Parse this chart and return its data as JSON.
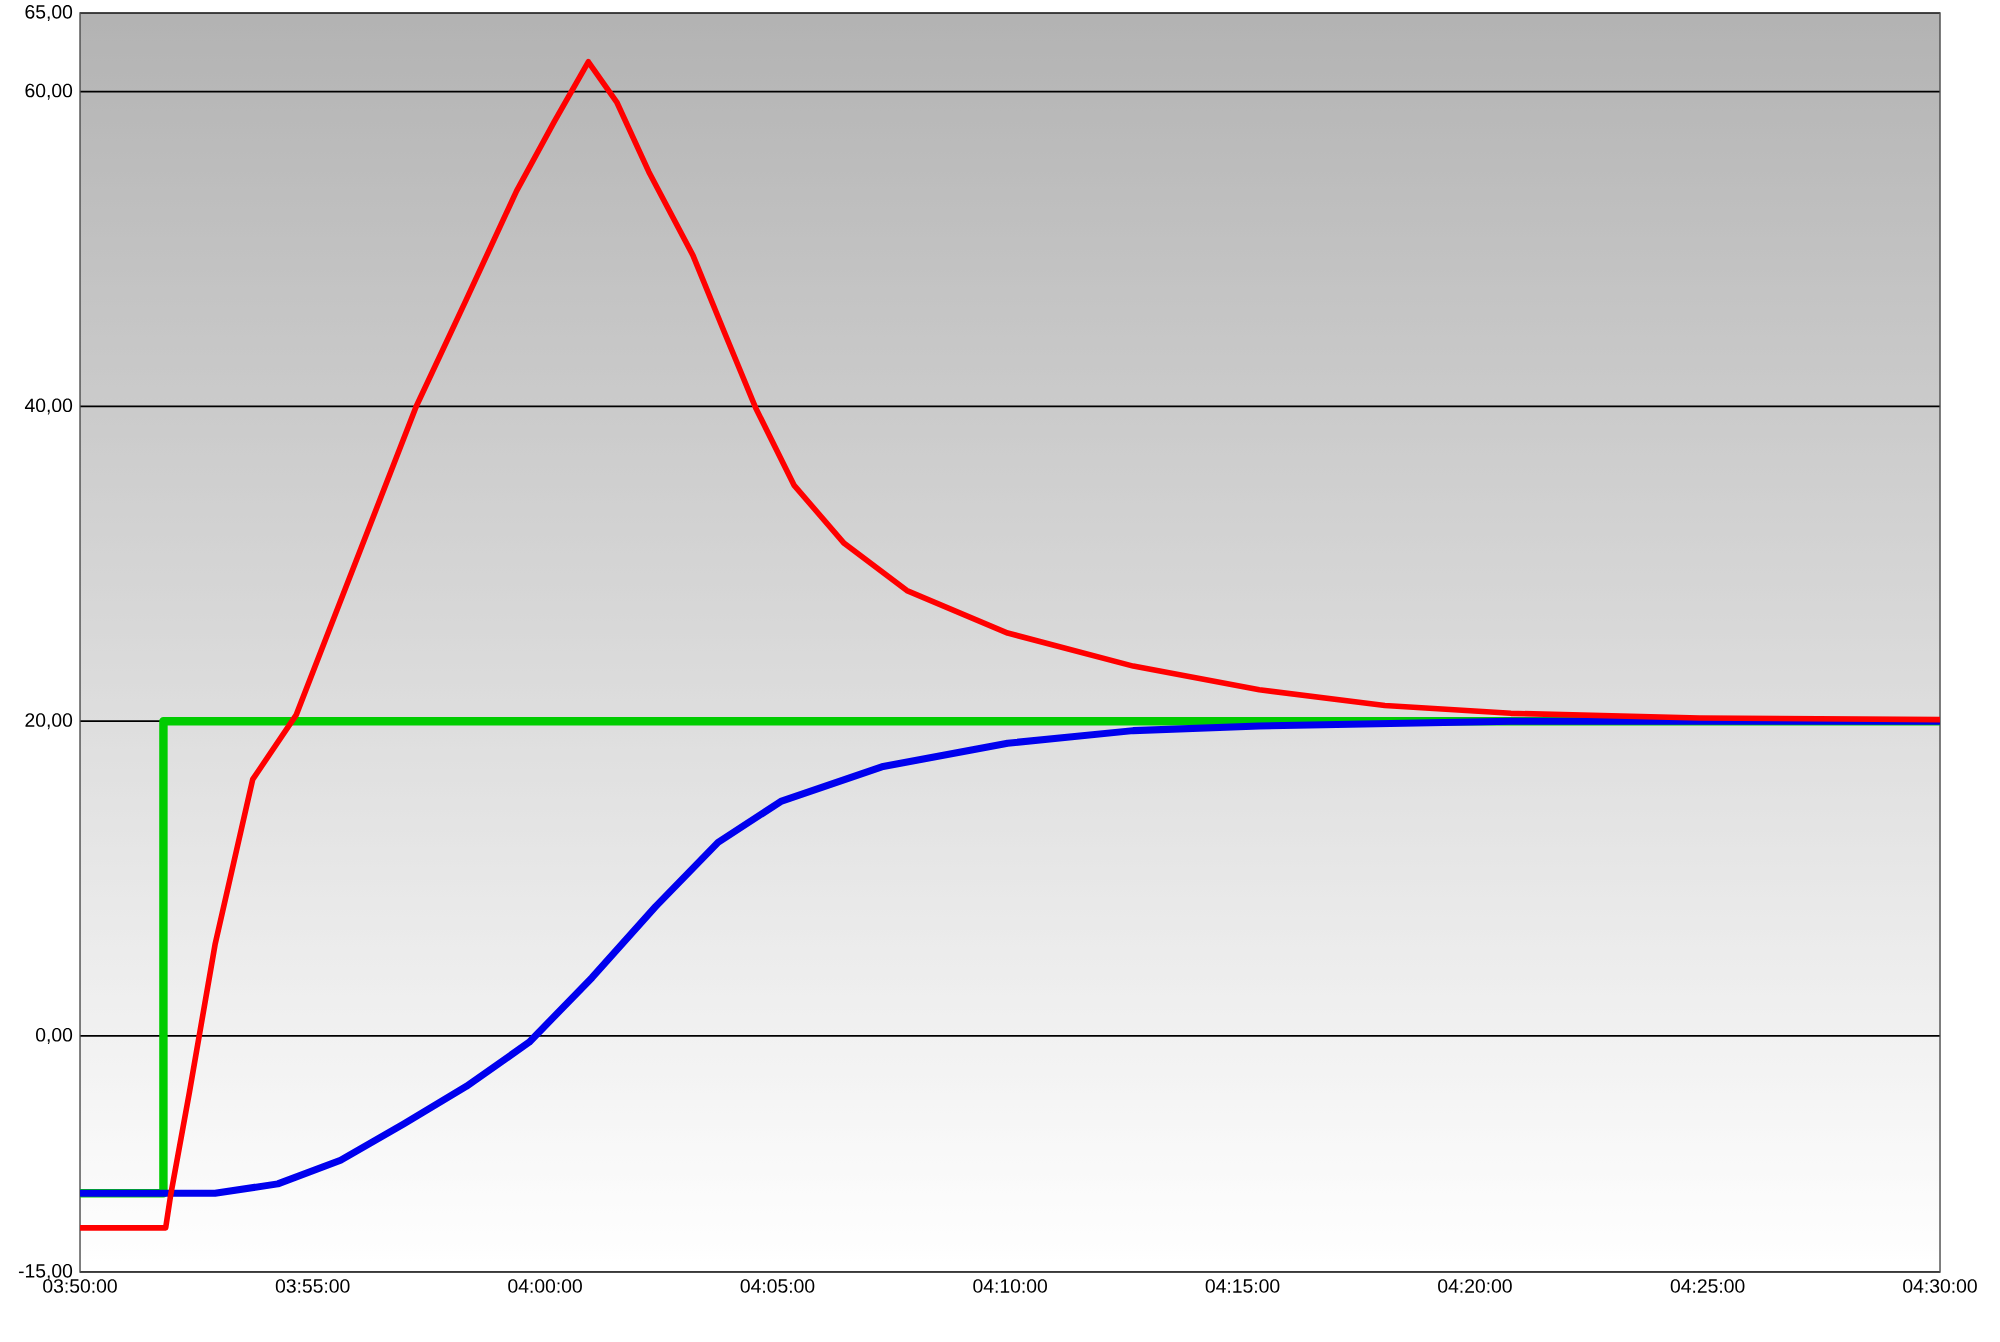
{
  "chart_data": {
    "type": "line",
    "xlim": [
      3.8333,
      4.5
    ],
    "xticks": [
      {
        "value": 3.8333,
        "label": "03:50:00"
      },
      {
        "value": 3.9167,
        "label": "03:55:00"
      },
      {
        "value": 4.0,
        "label": "04:00:00"
      },
      {
        "value": 4.0833,
        "label": "04:05:00"
      },
      {
        "value": 4.1667,
        "label": "04:10:00"
      },
      {
        "value": 4.25,
        "label": "04:15:00"
      },
      {
        "value": 4.3333,
        "label": "04:20:00"
      },
      {
        "value": 4.4167,
        "label": "04:25:00"
      },
      {
        "value": 4.5,
        "label": "04:30:00"
      }
    ],
    "ylim": [
      -15,
      65
    ],
    "yticks": [
      {
        "value": -15,
        "label": "-15,00"
      },
      {
        "value": 0,
        "label": "0,00"
      },
      {
        "value": 20,
        "label": "20,00"
      },
      {
        "value": 40,
        "label": "40,00"
      },
      {
        "value": 60,
        "label": "60,00"
      },
      {
        "value": 65,
        "label": "65,00"
      }
    ],
    "grid": "y",
    "series": [
      {
        "type": "step",
        "color": "#00cc00",
        "x": [
          3.8333,
          3.8632,
          4.5
        ],
        "values": [
          -10,
          20,
          20
        ]
      },
      {
        "color": "#0000ee",
        "x": [
          3.8333,
          3.8817,
          3.9042,
          3.9267,
          3.9493,
          3.9718,
          3.9943,
          4.0168,
          4.0395,
          4.062,
          4.0845,
          4.1207,
          4.1658,
          4.2108,
          4.256,
          4.3462,
          4.5
        ],
        "values": [
          -10,
          -10,
          -9.4,
          -7.9,
          -5.6,
          -3.2,
          -0.4,
          3.7,
          8.2,
          12.3,
          14.9,
          17.1,
          18.6,
          19.4,
          19.7,
          20.0,
          20.0
        ]
      },
      {
        "color": "#ff0000",
        "x": [
          3.8333,
          3.864,
          3.8658,
          3.8725,
          3.8817,
          3.8952,
          3.9108,
          3.9222,
          3.9402,
          3.9538,
          3.9718,
          3.9898,
          4.0033,
          4.0155,
          4.0258,
          4.0372,
          4.053,
          4.0643,
          4.0755,
          4.0892,
          4.1072,
          4.1297,
          4.1658,
          4.2108,
          4.256,
          4.301,
          4.3462,
          4.4138,
          4.5
        ],
        "values": [
          -12.2,
          -12.2,
          -10.1,
          -3.6,
          5.8,
          16.3,
          20.4,
          25.6,
          33.8,
          40.0,
          46.8,
          53.7,
          58.1,
          61.9,
          59.3,
          54.9,
          49.6,
          44.7,
          39.9,
          35.0,
          31.3,
          28.3,
          25.6,
          23.5,
          22.0,
          21.0,
          20.5,
          20.2,
          20.1
        ]
      }
    ]
  }
}
